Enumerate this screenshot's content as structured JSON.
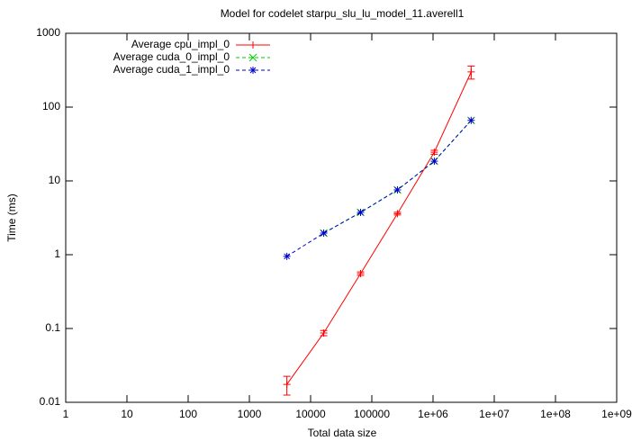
{
  "chart_data": {
    "type": "line",
    "title": "Model for codelet starpu_slu_lu_model_11.averell1",
    "xlabel": "Total data size",
    "ylabel": "Time (ms)",
    "xlog": true,
    "ylog": true,
    "legend": "top-left",
    "x": [
      4096,
      16384,
      65536,
      262144,
      1048576,
      4194304
    ],
    "series": [
      {
        "name": "Average cpu_impl_0",
        "color": "#ff0000",
        "dash": false,
        "marker": "plus",
        "values": [
          0.0175,
          0.087,
          0.555,
          3.6,
          24.5,
          300
        ],
        "errors": [
          0.005,
          0.007,
          0.03,
          0.15,
          1.5,
          60
        ]
      },
      {
        "name": "Average cuda_0_impl_0",
        "color": "#00cc00",
        "dash": true,
        "marker": "cross",
        "values": [
          null,
          1.96,
          3.74,
          7.55,
          18.5,
          66
        ]
      },
      {
        "name": "Average cuda_1_impl_0",
        "color": "#0000cc",
        "dash": true,
        "marker": "star",
        "values": [
          0.95,
          1.96,
          3.74,
          7.55,
          18.5,
          66
        ]
      }
    ],
    "xlim": [
      1,
      1000000000
    ],
    "xticks": [
      1,
      10,
      100,
      1000,
      10000,
      100000,
      {
        "value": 1000000,
        "label": "1e+06"
      },
      {
        "value": 10000000,
        "label": "1e+07"
      },
      {
        "value": 100000000,
        "label": "1e+08"
      },
      {
        "value": 1000000000,
        "label": "1e+09"
      }
    ],
    "ylim": [
      0.01,
      1000
    ],
    "yticks": [
      0.01,
      0.1,
      1,
      10,
      100,
      1000
    ]
  }
}
